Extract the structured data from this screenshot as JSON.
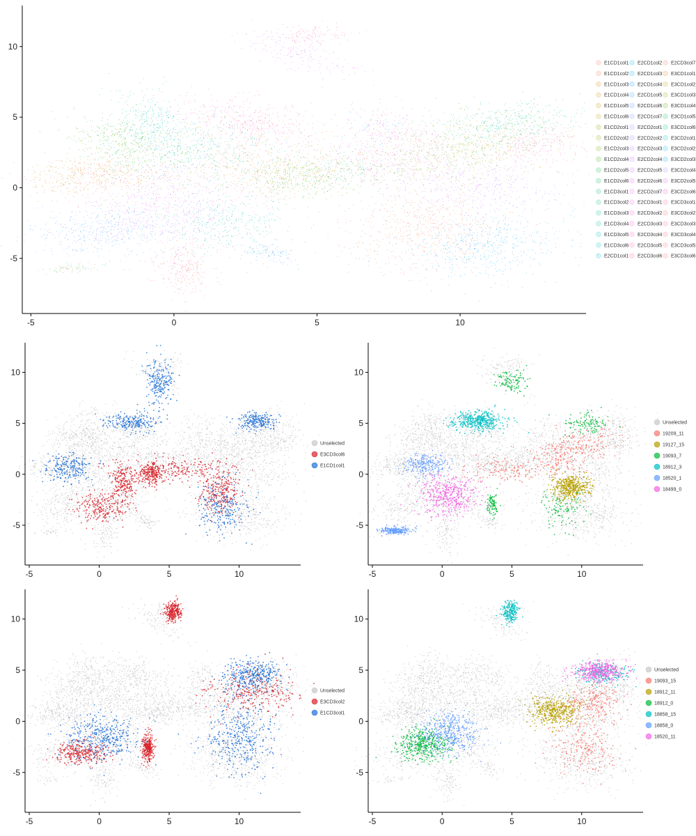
{
  "figure": {
    "panels": [
      {
        "id": "overview",
        "legend_columns": 3,
        "legend": [
          {
            "label": "E1CD1col1",
            "color": "#f8766d"
          },
          {
            "label": "E1CD1col2",
            "color": "#f07f4a"
          },
          {
            "label": "E1CD1col3",
            "color": "#e58700"
          },
          {
            "label": "E1CD1col4",
            "color": "#d89000"
          },
          {
            "label": "E1CD1col5",
            "color": "#c99800"
          },
          {
            "label": "E1CD1col6",
            "color": "#b9a000"
          },
          {
            "label": "E1CD2col1",
            "color": "#a3a500"
          },
          {
            "label": "E1CD2col2",
            "color": "#8aab00"
          },
          {
            "label": "E1CD2col3",
            "color": "#6bb100"
          },
          {
            "label": "E1CD2col4",
            "color": "#39b600"
          },
          {
            "label": "E1CD2col5",
            "color": "#00ba38"
          },
          {
            "label": "E1CD2col6",
            "color": "#00bc59"
          },
          {
            "label": "E1CD3col1",
            "color": "#00be70"
          },
          {
            "label": "E1CD3col2",
            "color": "#00bf84"
          },
          {
            "label": "E1CD3col3",
            "color": "#00c097"
          },
          {
            "label": "E1CD3col4",
            "color": "#00c1a9"
          },
          {
            "label": "E1CD3col5",
            "color": "#00c0b9"
          },
          {
            "label": "E1CD3col6",
            "color": "#00bfc4"
          },
          {
            "label": "E2CD1col1",
            "color": "#00bcd8"
          },
          {
            "label": "E2CD1col2",
            "color": "#00b6e5"
          },
          {
            "label": "E2CD1col3",
            "color": "#00b0f6"
          },
          {
            "label": "E2CD1col4",
            "color": "#00a9ff"
          },
          {
            "label": "E2CD1col5",
            "color": "#35a2ff"
          },
          {
            "label": "E2CD1col6",
            "color": "#619cff"
          },
          {
            "label": "E2CD1col7",
            "color": "#7f96ff"
          },
          {
            "label": "E2CD2col1",
            "color": "#9590ff"
          },
          {
            "label": "E2CD2col2",
            "color": "#a98aff"
          },
          {
            "label": "E2CD2col3",
            "color": "#b983ff"
          },
          {
            "label": "E2CD2col4",
            "color": "#c77cff"
          },
          {
            "label": "E2CD2col5",
            "color": "#d575fe"
          },
          {
            "label": "E2CD2col6",
            "color": "#e36ff6"
          },
          {
            "label": "E2CD2col7",
            "color": "#ee6aed"
          },
          {
            "label": "E2CD3col1",
            "color": "#f564e3"
          },
          {
            "label": "E2CD3col2",
            "color": "#fa62d6"
          },
          {
            "label": "E2CD3col3",
            "color": "#fd61c8"
          },
          {
            "label": "E2CD3col4",
            "color": "#ff62bc"
          },
          {
            "label": "E2CD3col5",
            "color": "#ff64b0"
          },
          {
            "label": "E2CD3col6",
            "color": "#ff66a4"
          },
          {
            "label": "E2CD3col7",
            "color": "#f8766d"
          },
          {
            "label": "E3CD1col1",
            "color": "#e7861b"
          },
          {
            "label": "E3CD1col2",
            "color": "#c49a00"
          },
          {
            "label": "E3CD1col3",
            "color": "#99a800"
          },
          {
            "label": "E3CD1col4",
            "color": "#53b400"
          },
          {
            "label": "E3CD1col5",
            "color": "#00bc56"
          },
          {
            "label": "E3CD1col6",
            "color": "#00c094"
          },
          {
            "label": "E3CD2col1",
            "color": "#00bfc4"
          },
          {
            "label": "E3CD2col2",
            "color": "#00b6eb"
          },
          {
            "label": "E3CD2col3",
            "color": "#06a4ff"
          },
          {
            "label": "E3CD2col4",
            "color": "#a58aff"
          },
          {
            "label": "E3CD2col5",
            "color": "#df70f8"
          },
          {
            "label": "E3CD2col6",
            "color": "#fb61d7"
          },
          {
            "label": "E3CD3col1",
            "color": "#ff66a8"
          },
          {
            "label": "E3CD3col2",
            "color": "#f8766d"
          },
          {
            "label": "E3CD3col3",
            "color": "#ff6c91"
          },
          {
            "label": "E3CD3col4",
            "color": "#ff6f83"
          },
          {
            "label": "E3CD3col5",
            "color": "#fc7279"
          },
          {
            "label": "E3CD3col6",
            "color": "#fa7470"
          }
        ]
      },
      {
        "id": "cols-selection-a",
        "legend_columns": 1,
        "legend": [
          {
            "label": "Unselected",
            "color": "#c8c8c8"
          },
          {
            "label": "E3CD3col6",
            "color": "#d7222a"
          },
          {
            "label": "E1CD1col1",
            "color": "#1f6fd6"
          }
        ]
      },
      {
        "id": "clusters-selection-a",
        "legend_columns": 1,
        "legend": [
          {
            "label": "Unselected",
            "color": "#c8c8c8"
          },
          {
            "label": "19209_11",
            "color": "#f8766d"
          },
          {
            "label": "19127_15",
            "color": "#b79f00"
          },
          {
            "label": "19093_7",
            "color": "#00ba38"
          },
          {
            "label": "18912_3",
            "color": "#00bfc4"
          },
          {
            "label": "18520_1",
            "color": "#619cff"
          },
          {
            "label": "18499_0",
            "color": "#f564e3"
          }
        ]
      },
      {
        "id": "cols-selection-b",
        "legend_columns": 1,
        "legend": [
          {
            "label": "Unselected",
            "color": "#c8c8c8"
          },
          {
            "label": "E3CD3col2",
            "color": "#d7222a"
          },
          {
            "label": "E1CD3col1",
            "color": "#1f6fd6"
          }
        ]
      },
      {
        "id": "clusters-selection-b",
        "legend_columns": 1,
        "legend": [
          {
            "label": "Unselected",
            "color": "#c8c8c8"
          },
          {
            "label": "19093_15",
            "color": "#f8766d"
          },
          {
            "label": "18912_11",
            "color": "#b79f00"
          },
          {
            "label": "18912_0",
            "color": "#00ba38"
          },
          {
            "label": "18858_15",
            "color": "#00bfc4"
          },
          {
            "label": "18858_0",
            "color": "#619cff"
          },
          {
            "label": "18520_11",
            "color": "#f564e3"
          }
        ]
      }
    ]
  },
  "chart_data": [
    {
      "type": "scatter",
      "title": "",
      "xlabel": "",
      "ylabel": "",
      "xlim": [
        -5.3,
        14.4
      ],
      "ylim": [
        -8.9,
        12.9
      ],
      "x_ticks": [
        "-5",
        "0",
        "5",
        "10"
      ],
      "x_tick_values": [
        -5,
        0,
        5,
        10
      ],
      "y_ticks": [
        "-5",
        "0",
        "5",
        "10"
      ],
      "y_tick_values": [
        -5,
        0,
        5,
        10
      ],
      "grid": false,
      "legend_position": "right",
      "color_by": "sample column (57 groups)"
    },
    {
      "type": "scatter",
      "title": "",
      "xlabel": "",
      "ylabel": "",
      "xlim": [
        -5.3,
        14.4
      ],
      "ylim": [
        -8.9,
        12.9
      ],
      "x_ticks": [
        "-5",
        "0",
        "5",
        "10"
      ],
      "x_tick_values": [
        -5,
        0,
        5,
        10
      ],
      "y_ticks": [
        "-5",
        "0",
        "5",
        "10"
      ],
      "y_tick_values": [
        -5,
        0,
        5,
        10
      ],
      "grid": false,
      "legend_position": "right",
      "highlighted_series": [
        "E3CD3col6",
        "E1CD1col1"
      ]
    },
    {
      "type": "scatter",
      "title": "",
      "xlabel": "",
      "ylabel": "",
      "xlim": [
        -5.3,
        14.4
      ],
      "ylim": [
        -8.9,
        12.9
      ],
      "x_ticks": [
        "-5",
        "0",
        "5",
        "10"
      ],
      "x_tick_values": [
        -5,
        0,
        5,
        10
      ],
      "y_ticks": [
        "-5",
        "0",
        "5",
        "10"
      ],
      "y_tick_values": [
        -5,
        0,
        5,
        10
      ],
      "grid": false,
      "legend_position": "right",
      "highlighted_series": [
        "19209_11",
        "19127_15",
        "19093_7",
        "18912_3",
        "18520_1",
        "18499_0"
      ]
    },
    {
      "type": "scatter",
      "title": "",
      "xlabel": "",
      "ylabel": "",
      "xlim": [
        -5.3,
        14.4
      ],
      "ylim": [
        -8.9,
        12.9
      ],
      "x_ticks": [
        "-5",
        "0",
        "5",
        "10"
      ],
      "x_tick_values": [
        -5,
        0,
        5,
        10
      ],
      "y_ticks": [
        "-5",
        "0",
        "5",
        "10"
      ],
      "y_tick_values": [
        -5,
        0,
        5,
        10
      ],
      "grid": false,
      "legend_position": "right",
      "highlighted_series": [
        "E3CD3col2",
        "E1CD3col1"
      ]
    },
    {
      "type": "scatter",
      "title": "",
      "xlabel": "",
      "ylabel": "",
      "xlim": [
        -5.3,
        14.4
      ],
      "ylim": [
        -8.9,
        12.9
      ],
      "x_ticks": [
        "-5",
        "0",
        "5",
        "10"
      ],
      "x_tick_values": [
        -5,
        0,
        5,
        10
      ],
      "y_ticks": [
        "-5",
        "0",
        "5",
        "10"
      ],
      "y_tick_values": [
        -5,
        0,
        5,
        10
      ],
      "grid": false,
      "legend_position": "right",
      "highlighted_series": [
        "19093_15",
        "18912_11",
        "18912_0",
        "18858_15",
        "18858_0",
        "18520_11"
      ]
    }
  ]
}
